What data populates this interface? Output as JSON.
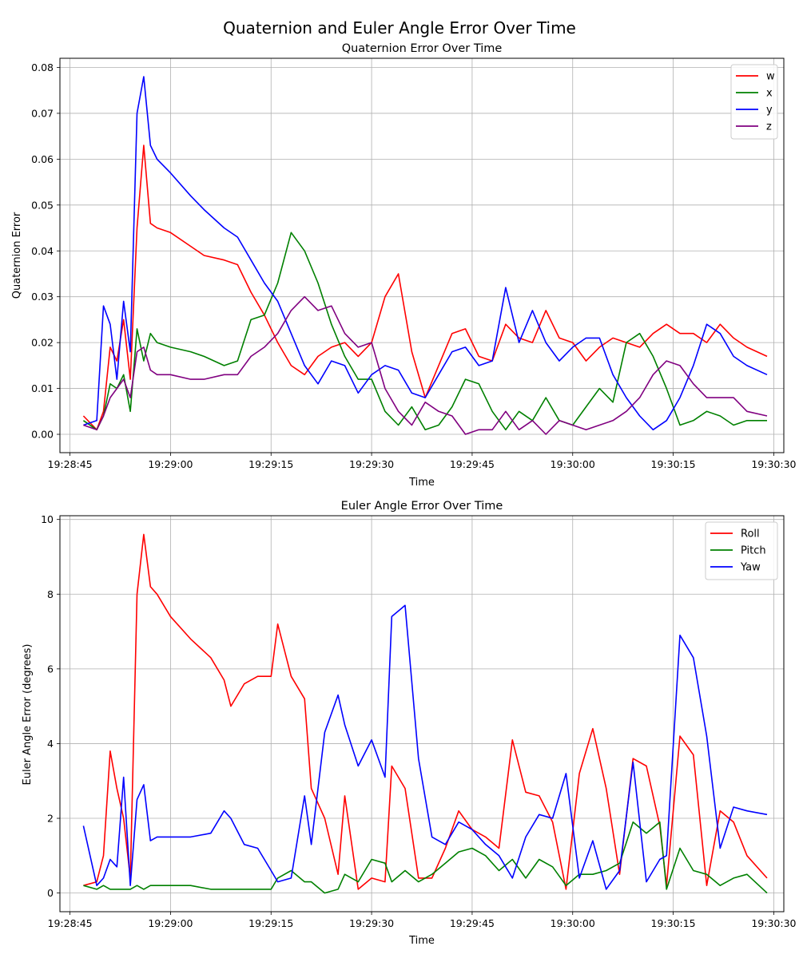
{
  "figure": {
    "suptitle": "Quaternion and Euler Angle Error Over Time"
  },
  "chart_data": [
    {
      "type": "line",
      "title": "Quaternion Error Over Time",
      "xlabel": "Time",
      "ylabel": "Quaternion Error",
      "xlim": [
        "19:28:43.5",
        "19:30:31.5"
      ],
      "ylim": [
        -0.004,
        0.082
      ],
      "xticks": [
        "19:28:45",
        "19:29:00",
        "19:29:15",
        "19:29:30",
        "19:29:45",
        "19:30:00",
        "19:30:15",
        "19:30:30"
      ],
      "yticks": [
        "0.00",
        "0.01",
        "0.02",
        "0.03",
        "0.04",
        "0.05",
        "0.06",
        "0.07",
        "0.08"
      ],
      "grid": true,
      "legend_position": "top-right",
      "x_times": [
        "19:28:47",
        "19:28:49",
        "19:28:50",
        "19:28:51",
        "19:28:52",
        "19:28:53",
        "19:28:54",
        "19:28:55",
        "19:28:56",
        "19:28:57",
        "19:28:58",
        "19:29:00",
        "19:29:03",
        "19:29:05",
        "19:29:08",
        "19:29:10",
        "19:29:12",
        "19:29:14",
        "19:29:16",
        "19:29:18",
        "19:29:20",
        "19:29:22",
        "19:29:24",
        "19:29:26",
        "19:29:28",
        "19:29:30",
        "19:29:32",
        "19:29:34",
        "19:29:36",
        "19:29:38",
        "19:29:40",
        "19:29:42",
        "19:29:44",
        "19:29:46",
        "19:29:48",
        "19:29:50",
        "19:29:52",
        "19:29:54",
        "19:29:56",
        "19:29:58",
        "19:30:00",
        "19:30:02",
        "19:30:04",
        "19:30:06",
        "19:30:08",
        "19:30:10",
        "19:30:12",
        "19:30:14",
        "19:30:16",
        "19:30:18",
        "19:30:20",
        "19:30:22",
        "19:30:24",
        "19:30:26",
        "19:30:29"
      ],
      "series": [
        {
          "name": "w",
          "color": "#ff0000",
          "values": [
            0.004,
            0.001,
            0.005,
            0.019,
            0.016,
            0.025,
            0.012,
            0.045,
            0.063,
            0.046,
            0.045,
            0.044,
            0.041,
            0.039,
            0.038,
            0.037,
            0.031,
            0.026,
            0.02,
            0.015,
            0.013,
            0.017,
            0.019,
            0.02,
            0.017,
            0.02,
            0.03,
            0.035,
            0.018,
            0.008,
            0.015,
            0.022,
            0.023,
            0.017,
            0.016,
            0.024,
            0.021,
            0.02,
            0.027,
            0.021,
            0.02,
            0.016,
            0.019,
            0.021,
            0.02,
            0.019,
            0.022,
            0.024,
            0.022,
            0.022,
            0.02,
            0.024,
            0.021,
            0.019,
            0.017
          ]
        },
        {
          "name": "x",
          "color": "#008000",
          "values": [
            0.003,
            0.001,
            0.004,
            0.011,
            0.01,
            0.013,
            0.005,
            0.023,
            0.016,
            0.022,
            0.02,
            0.019,
            0.018,
            0.017,
            0.015,
            0.016,
            0.025,
            0.026,
            0.033,
            0.044,
            0.04,
            0.033,
            0.024,
            0.017,
            0.012,
            0.012,
            0.005,
            0.002,
            0.006,
            0.001,
            0.002,
            0.006,
            0.012,
            0.011,
            0.005,
            0.001,
            0.005,
            0.003,
            0.008,
            0.003,
            0.002,
            0.006,
            0.01,
            0.007,
            0.02,
            0.022,
            0.017,
            0.01,
            0.002,
            0.003,
            0.005,
            0.004,
            0.002,
            0.003,
            0.003
          ]
        },
        {
          "name": "y",
          "color": "#0000ff",
          "values": [
            0.002,
            0.003,
            0.028,
            0.024,
            0.012,
            0.029,
            0.018,
            0.07,
            0.078,
            0.063,
            0.06,
            0.057,
            0.052,
            0.049,
            0.045,
            0.043,
            0.038,
            0.033,
            0.029,
            0.022,
            0.015,
            0.011,
            0.016,
            0.015,
            0.009,
            0.013,
            0.015,
            0.014,
            0.009,
            0.008,
            0.013,
            0.018,
            0.019,
            0.015,
            0.016,
            0.032,
            0.02,
            0.027,
            0.02,
            0.016,
            0.019,
            0.021,
            0.021,
            0.013,
            0.008,
            0.004,
            0.001,
            0.003,
            0.008,
            0.015,
            0.024,
            0.022,
            0.017,
            0.015,
            0.013
          ]
        },
        {
          "name": "z",
          "color": "#800080",
          "values": [
            0.002,
            0.001,
            0.004,
            0.008,
            0.01,
            0.012,
            0.008,
            0.018,
            0.019,
            0.014,
            0.013,
            0.013,
            0.012,
            0.012,
            0.013,
            0.013,
            0.017,
            0.019,
            0.022,
            0.027,
            0.03,
            0.027,
            0.028,
            0.022,
            0.019,
            0.02,
            0.01,
            0.005,
            0.002,
            0.007,
            0.005,
            0.004,
            0.0,
            0.001,
            0.001,
            0.005,
            0.001,
            0.003,
            0.0,
            0.003,
            0.002,
            0.001,
            0.002,
            0.003,
            0.005,
            0.008,
            0.013,
            0.016,
            0.015,
            0.011,
            0.008,
            0.008,
            0.008,
            0.005,
            0.004
          ]
        }
      ]
    },
    {
      "type": "line",
      "title": "Euler Angle Error Over Time",
      "xlabel": "Time",
      "ylabel": "Euler Angle Error (degrees)",
      "xlim": [
        "19:28:43.5",
        "19:30:31.5"
      ],
      "ylim": [
        -0.5,
        10.1
      ],
      "xticks": [
        "19:28:45",
        "19:29:00",
        "19:29:15",
        "19:29:30",
        "19:29:45",
        "19:30:00",
        "19:30:15",
        "19:30:30"
      ],
      "yticks": [
        "0",
        "2",
        "4",
        "6",
        "8",
        "10"
      ],
      "grid": true,
      "legend_position": "top-right",
      "x_times": [
        "19:28:47",
        "19:28:49",
        "19:28:50",
        "19:28:51",
        "19:28:52",
        "19:28:53",
        "19:28:54",
        "19:28:55",
        "19:28:56",
        "19:28:57",
        "19:28:58",
        "19:29:00",
        "19:29:03",
        "19:29:06",
        "19:29:08",
        "19:29:09",
        "19:29:11",
        "19:29:13",
        "19:29:15",
        "19:29:16",
        "19:29:18",
        "19:29:20",
        "19:29:21",
        "19:29:23",
        "19:29:25",
        "19:29:26",
        "19:29:28",
        "19:29:30",
        "19:29:32",
        "19:29:33",
        "19:29:35",
        "19:29:37",
        "19:29:39",
        "19:29:41",
        "19:29:43",
        "19:29:45",
        "19:29:47",
        "19:29:49",
        "19:29:51",
        "19:29:53",
        "19:29:55",
        "19:29:57",
        "19:29:59",
        "19:30:01",
        "19:30:03",
        "19:30:05",
        "19:30:07",
        "19:30:09",
        "19:30:11",
        "19:30:13",
        "19:30:14",
        "19:30:16",
        "19:30:18",
        "19:30:20",
        "19:30:22",
        "19:30:24",
        "19:30:26",
        "19:30:29"
      ],
      "series": [
        {
          "name": "Roll",
          "color": "#ff0000",
          "values": [
            0.2,
            0.3,
            1.0,
            3.8,
            2.8,
            2.0,
            0.4,
            8.0,
            9.6,
            8.2,
            8.0,
            7.4,
            6.8,
            6.3,
            5.7,
            5.0,
            5.6,
            5.8,
            5.8,
            7.2,
            5.8,
            5.2,
            2.8,
            2.0,
            0.5,
            2.6,
            0.1,
            0.4,
            0.3,
            3.4,
            2.8,
            0.4,
            0.4,
            1.2,
            2.2,
            1.7,
            1.5,
            1.2,
            4.1,
            2.7,
            2.6,
            1.9,
            0.1,
            3.2,
            4.4,
            2.8,
            0.5,
            3.6,
            3.4,
            1.8,
            0.2,
            4.2,
            3.7,
            0.2,
            2.2,
            1.9,
            1.0,
            0.4
          ]
        },
        {
          "name": "Pitch",
          "color": "#008000",
          "values": [
            0.2,
            0.1,
            0.2,
            0.1,
            0.1,
            0.1,
            0.1,
            0.2,
            0.1,
            0.2,
            0.2,
            0.2,
            0.2,
            0.1,
            0.1,
            0.1,
            0.1,
            0.1,
            0.1,
            0.4,
            0.6,
            0.3,
            0.3,
            0.0,
            0.1,
            0.5,
            0.3,
            0.9,
            0.8,
            0.3,
            0.6,
            0.3,
            0.5,
            0.8,
            1.1,
            1.2,
            1.0,
            0.6,
            0.9,
            0.4,
            0.9,
            0.7,
            0.2,
            0.5,
            0.5,
            0.6,
            0.8,
            1.9,
            1.6,
            1.9,
            0.1,
            1.2,
            0.6,
            0.5,
            0.2,
            0.4,
            0.5,
            0.0
          ]
        },
        {
          "name": "Yaw",
          "color": "#0000ff",
          "values": [
            1.8,
            0.2,
            0.4,
            0.9,
            0.7,
            3.1,
            0.2,
            2.5,
            2.9,
            1.4,
            1.5,
            1.5,
            1.5,
            1.6,
            2.2,
            2.0,
            1.3,
            1.2,
            0.6,
            0.3,
            0.4,
            2.6,
            1.3,
            4.3,
            5.3,
            4.5,
            3.4,
            4.1,
            3.1,
            7.4,
            7.7,
            3.6,
            1.5,
            1.3,
            1.9,
            1.7,
            1.3,
            1.0,
            0.4,
            1.5,
            2.1,
            2.0,
            3.2,
            0.4,
            1.4,
            0.1,
            0.6,
            3.5,
            0.3,
            0.9,
            1.0,
            6.9,
            6.3,
            4.2,
            1.2,
            2.3,
            2.2,
            2.1
          ]
        }
      ]
    }
  ]
}
